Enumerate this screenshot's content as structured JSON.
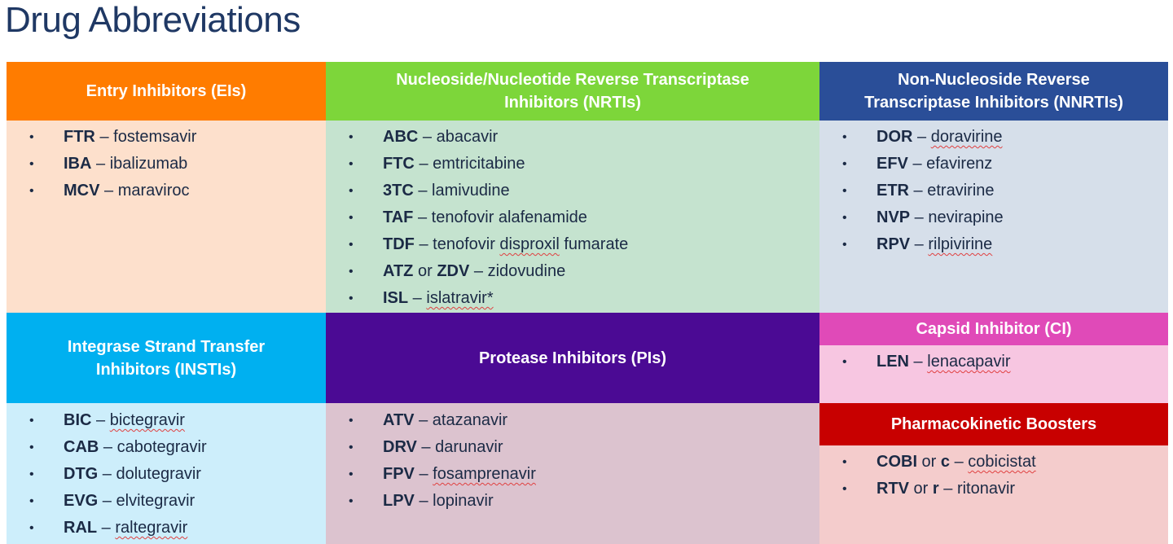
{
  "title": "Drug Abbreviations",
  "colors": {
    "ei": "#ff7c00",
    "nrti": "#7dd63a",
    "nnrti": "#2a4e98",
    "insti": "#00b0f0",
    "pi": "#4b0a94",
    "ci": "#e04ab8",
    "pk": "#c80000"
  },
  "groups": {
    "ei": {
      "header": "Entry Inhibitors (EIs)",
      "items": [
        {
          "abbr": "FTR",
          "sep": " – ",
          "name": "fostemsavir"
        },
        {
          "abbr": "IBA",
          "sep": " – ",
          "name": "ibalizumab"
        },
        {
          "abbr": "MCV",
          "sep": " – ",
          "name": "maraviroc"
        }
      ]
    },
    "nrti": {
      "header_line1": "Nucleoside/Nucleotide Reverse Transcriptase",
      "header_line2": "Inhibitors (NRTIs)",
      "items": [
        {
          "abbr": "ABC",
          "sep": " – ",
          "name": "abacavir"
        },
        {
          "abbr": "FTC",
          "sep": " – ",
          "name": "emtricitabine"
        },
        {
          "abbr": "3TC",
          "sep": " – ",
          "name": "lamivudine"
        },
        {
          "abbr": "TAF",
          "sep": " – ",
          "name": "tenofovir alafenamide"
        },
        {
          "abbr": "TDF",
          "sep": " – ",
          "name_a": "tenofovir ",
          "name_b": "disproxil",
          "name_c": " fumarate"
        },
        {
          "abbr": "ATZ",
          "mid": " or ",
          "abbr2": "ZDV",
          "sep": " – ",
          "name": "zidovudine"
        },
        {
          "abbr": "ISL",
          "sep": " – ",
          "name": "islatravir*"
        }
      ]
    },
    "nnrti": {
      "header_line1": "Non-Nucleoside Reverse",
      "header_line2": "Transcriptase Inhibitors (NNRTIs)",
      "items": [
        {
          "abbr": "DOR",
          "sep": " – ",
          "name": "doravirine"
        },
        {
          "abbr": "EFV",
          "sep": " – ",
          "name": "efavirenz"
        },
        {
          "abbr": "ETR",
          "sep": " – ",
          "name": "etravirine"
        },
        {
          "abbr": "NVP",
          "sep": " – ",
          "name": "nevirapine"
        },
        {
          "abbr": "RPV",
          "sep": " – ",
          "name": "rilpivirine"
        }
      ]
    },
    "insti": {
      "header_line1": "Integrase Strand Transfer",
      "header_line2": "Inhibitors (INSTIs)",
      "items": [
        {
          "abbr": "BIC",
          "sep": " – ",
          "name": "bictegravir"
        },
        {
          "abbr": "CAB",
          "sep": " – ",
          "name": "cabotegravir"
        },
        {
          "abbr": "DTG",
          "sep": " – ",
          "name": "dolutegravir"
        },
        {
          "abbr": "EVG",
          "sep": " – ",
          "name": "elvitegravir"
        },
        {
          "abbr": "RAL",
          "sep": " – ",
          "name": "raltegravir"
        }
      ]
    },
    "pi": {
      "header": "Protease Inhibitors (PIs)",
      "items": [
        {
          "abbr": "ATV",
          "sep": " – ",
          "name": "atazanavir"
        },
        {
          "abbr": "DRV",
          "sep": " – ",
          "name": "darunavir"
        },
        {
          "abbr": "FPV",
          "sep": " – ",
          "name": "fosamprenavir"
        },
        {
          "abbr": "LPV",
          "sep": " – ",
          "name": "lopinavir"
        }
      ]
    },
    "ci": {
      "header": "Capsid Inhibitor (CI)",
      "items": [
        {
          "abbr": "LEN",
          "sep": " – ",
          "name": "lenacapavir"
        }
      ]
    },
    "pk": {
      "header": "Pharmacokinetic Boosters",
      "items": [
        {
          "abbr": "COBI",
          "mid": " or ",
          "abbr2": "c",
          "sep": " – ",
          "name": "cobicistat"
        },
        {
          "abbr": "RTV",
          "mid": " or ",
          "abbr2": "r",
          "sep": " – ",
          "name": "ritonavir"
        }
      ]
    }
  }
}
